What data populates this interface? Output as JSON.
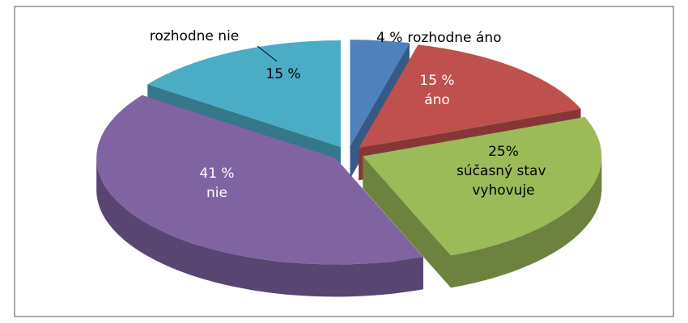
{
  "chart_data": {
    "type": "pie",
    "categories": [
      "rozhodne áno",
      "áno",
      "súčasný stav vyhovuje",
      "nie",
      "rozhodne nie"
    ],
    "values": [
      4,
      15,
      25,
      41,
      15
    ],
    "value_labels": [
      "4 %",
      "15 %",
      "25%",
      "41 %",
      "15 %"
    ],
    "colors": [
      "#4f81bd",
      "#c0504d",
      "#9bbb59",
      "#8064a2",
      "#4bacc6"
    ]
  }
}
